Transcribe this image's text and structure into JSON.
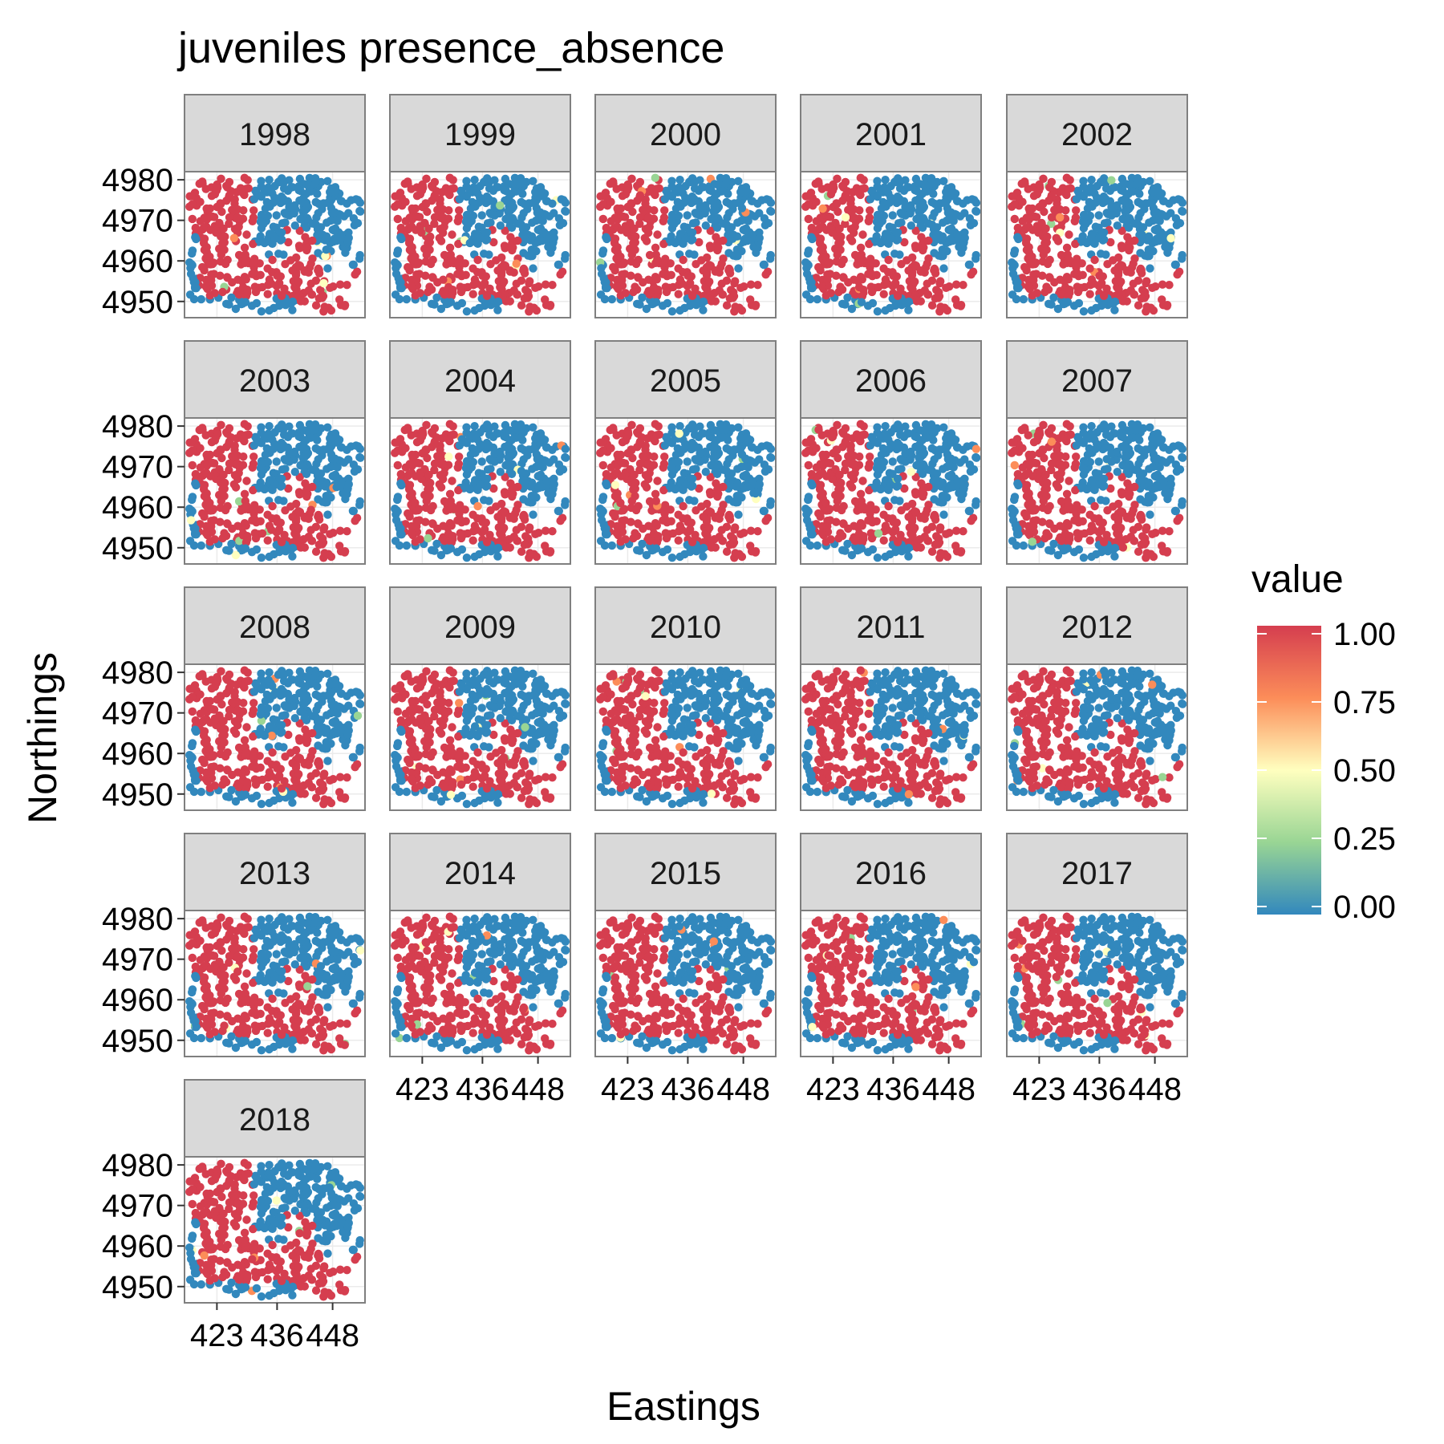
{
  "chart_data": {
    "type": "scatter",
    "title": "juveniles presence_absence",
    "xlabel": "Eastings",
    "ylabel": "Northings",
    "panels": [
      "1998",
      "1999",
      "2000",
      "2001",
      "2002",
      "2003",
      "2004",
      "2005",
      "2006",
      "2007",
      "2008",
      "2009",
      "2010",
      "2011",
      "2012",
      "2013",
      "2014",
      "2015",
      "2016",
      "2017",
      "2018"
    ],
    "columns": 5,
    "x_ticks": [
      423,
      436,
      448
    ],
    "x_tick_labels": [
      "423",
      "436",
      "448"
    ],
    "y_ticks": [
      4950,
      4960,
      4970,
      4980
    ],
    "y_tick_labels": [
      "4950",
      "4960",
      "4970",
      "4980"
    ],
    "xlim": [
      416,
      455
    ],
    "ylim": [
      4946,
      4982
    ],
    "legend": {
      "title": "value",
      "placement": "right",
      "ticks": [
        1.0,
        0.75,
        0.5,
        0.25,
        0.0
      ],
      "tick_labels": [
        "1.00",
        "0.75",
        "0.50",
        "0.25",
        "0.00"
      ]
    },
    "colors": {
      "high": "#d53e4f",
      "mid_high": "#fc8d59",
      "mid": "#ffffbf",
      "mid_low": "#99d594",
      "low": "#3288bd",
      "strip_fill": "#d9d9d9",
      "panel_border": "#7f7f7f",
      "grid": "#ebebeb"
    },
    "grid": true,
    "series": [
      {
        "values_description_note": "",
        "region_presence": [
          {
            "x_range": [
              417,
              432
            ],
            "y_range": [
              4965,
              4980
            ],
            "value": 1.0
          },
          {
            "x_range": [
              432,
              455
            ],
            "y_range": [
              4960,
              4980
            ],
            "value": 0.0
          },
          {
            "x_range": [
              418,
              452
            ],
            "y_range": [
              4950,
              4962
            ],
            "value": 1.0
          },
          {
            "x_range": [
              416,
              455
            ],
            "y_range": [
              4946,
              4952
            ],
            "value": 0.0
          }
        ]
      }
    ]
  }
}
